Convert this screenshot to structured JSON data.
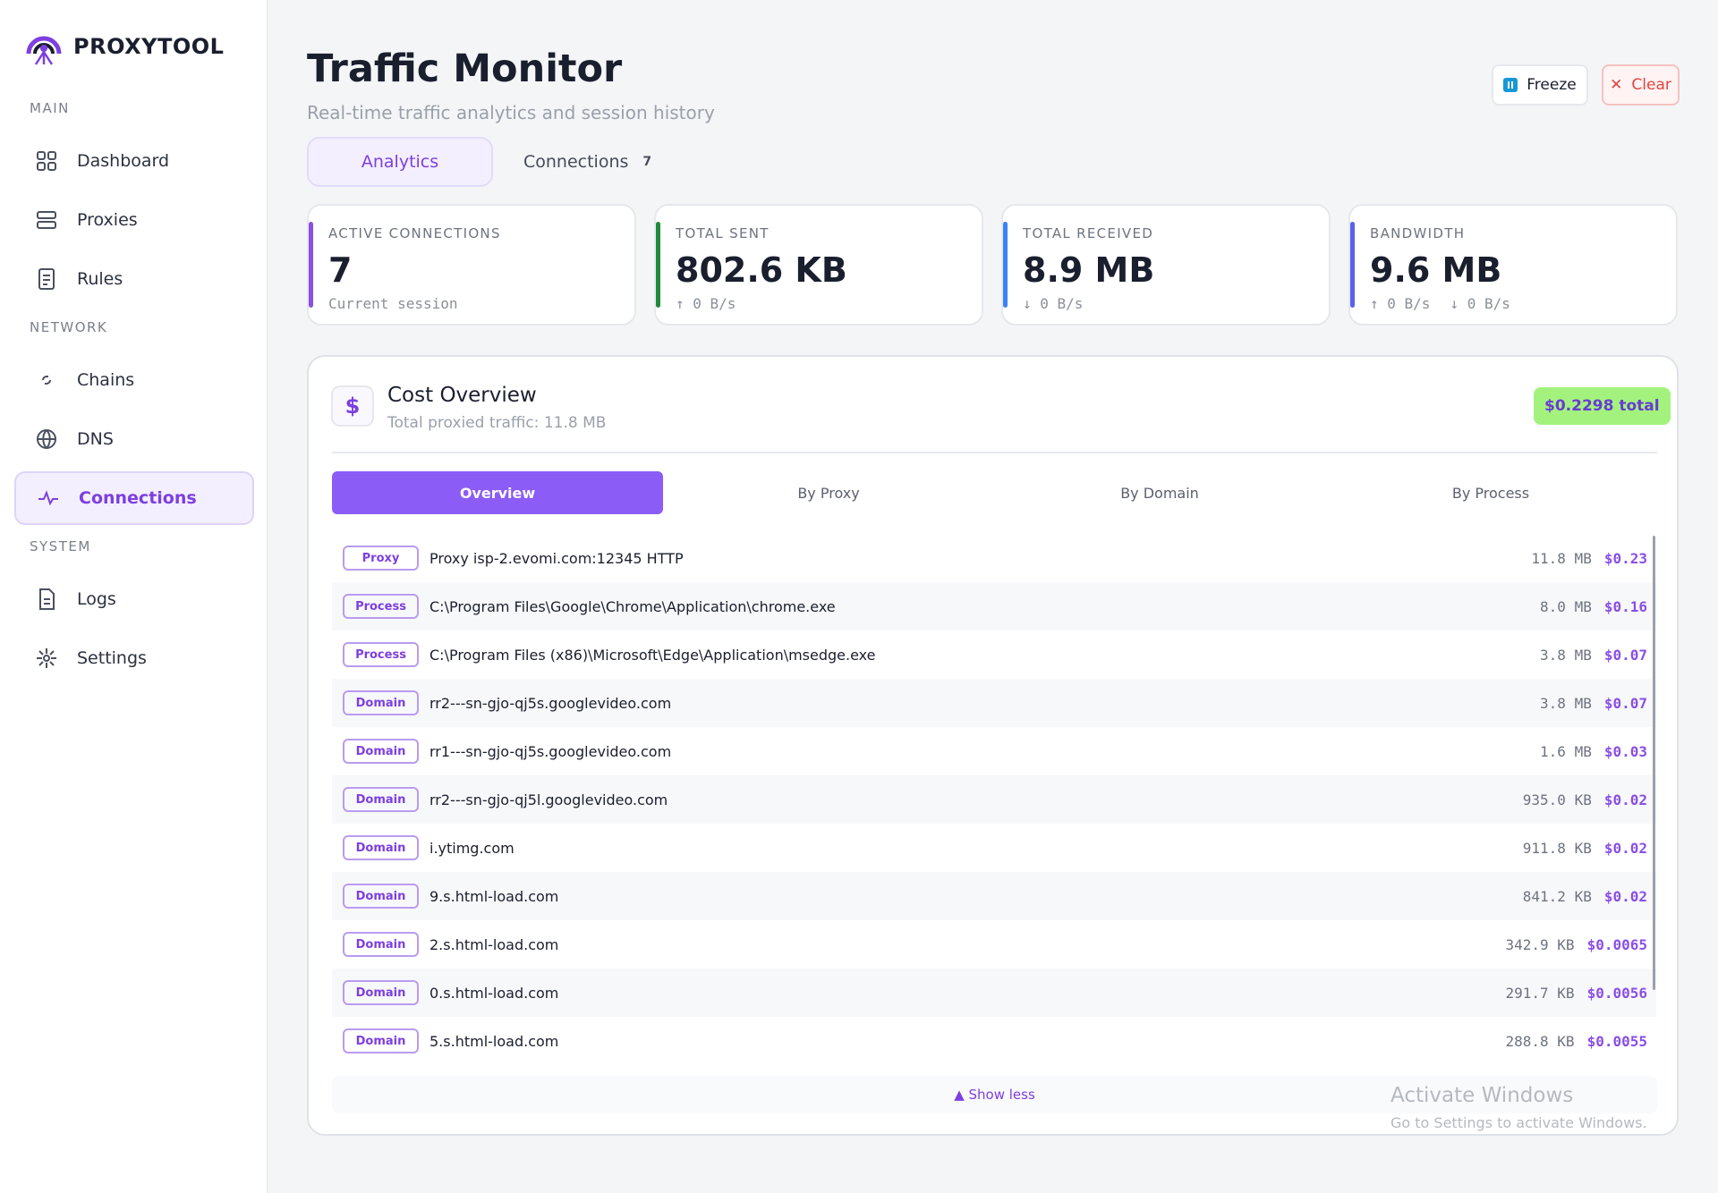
{
  "sidebar": {
    "brand": "PROXYTOOL",
    "sections": [
      {
        "label": "MAIN",
        "items": [
          "Dashboard",
          "Proxies",
          "Rules"
        ]
      },
      {
        "label": "NETWORK",
        "items": [
          "Chains",
          "DNS",
          "Connections"
        ]
      },
      {
        "label": "SYSTEM",
        "items": [
          "Logs",
          "Settings"
        ]
      }
    ]
  },
  "header": {
    "title": "Traffic Monitor",
    "subtitle": "Real-time traffic analytics and session history",
    "buttons": {
      "freeze": "Freeze",
      "clear": "Clear"
    }
  },
  "tabs": {
    "analytics": "Analytics",
    "connections": "Connections",
    "connections_count": "7"
  },
  "stats": [
    {
      "label": "ACTIVE CONNECTIONS",
      "value": "7",
      "sub": [
        "Current session"
      ]
    },
    {
      "label": "TOTAL SENT",
      "value": "802.6 KB",
      "sub": [
        "↑ 0 B/s"
      ]
    },
    {
      "label": "TOTAL RECEIVED",
      "value": "8.9 MB",
      "sub": [
        "↓ 0 B/s"
      ]
    },
    {
      "label": "BANDWIDTH",
      "value": "9.6 MB",
      "sub": [
        "↑ 0 B/s",
        "↓ 0 B/s"
      ]
    }
  ],
  "cost": {
    "icon": "$",
    "title": "Cost Overview",
    "subtitle": "Total proxied traffic: 11.8 MB",
    "total": "$0.2298 total",
    "tabs": [
      "Overview",
      "By Proxy",
      "By Domain",
      "By Process"
    ],
    "rows": [
      {
        "kind": "Proxy",
        "name": "Proxy isp-2.evomi.com:12345 HTTP",
        "size": "11.8 MB",
        "cost": "$0.23"
      },
      {
        "kind": "Process",
        "name": "C:\\Program Files\\Google\\Chrome\\Application\\chrome.exe",
        "size": "8.0 MB",
        "cost": "$0.16"
      },
      {
        "kind": "Process",
        "name": "C:\\Program Files (x86)\\Microsoft\\Edge\\Application\\msedge.exe",
        "size": "3.8 MB",
        "cost": "$0.07"
      },
      {
        "kind": "Domain",
        "name": "rr2---sn-gjo-qj5s.googlevideo.com",
        "size": "3.8 MB",
        "cost": "$0.07"
      },
      {
        "kind": "Domain",
        "name": "rr1---sn-gjo-qj5s.googlevideo.com",
        "size": "1.6 MB",
        "cost": "$0.03"
      },
      {
        "kind": "Domain",
        "name": "rr2---sn-gjo-qj5l.googlevideo.com",
        "size": "935.0 KB",
        "cost": "$0.02"
      },
      {
        "kind": "Domain",
        "name": "i.ytimg.com",
        "size": "911.8 KB",
        "cost": "$0.02"
      },
      {
        "kind": "Domain",
        "name": "9.s.html-load.com",
        "size": "841.2 KB",
        "cost": "$0.02"
      },
      {
        "kind": "Domain",
        "name": "2.s.html-load.com",
        "size": "342.9 KB",
        "cost": "$0.0065"
      },
      {
        "kind": "Domain",
        "name": "0.s.html-load.com",
        "size": "291.7 KB",
        "cost": "$0.0056"
      },
      {
        "kind": "Domain",
        "name": "5.s.html-load.com",
        "size": "288.8 KB",
        "cost": "$0.0055"
      }
    ],
    "show_less": "▲ Show less"
  },
  "watermark": {
    "title": "Activate Windows",
    "text": "Go to Settings to activate Windows."
  }
}
